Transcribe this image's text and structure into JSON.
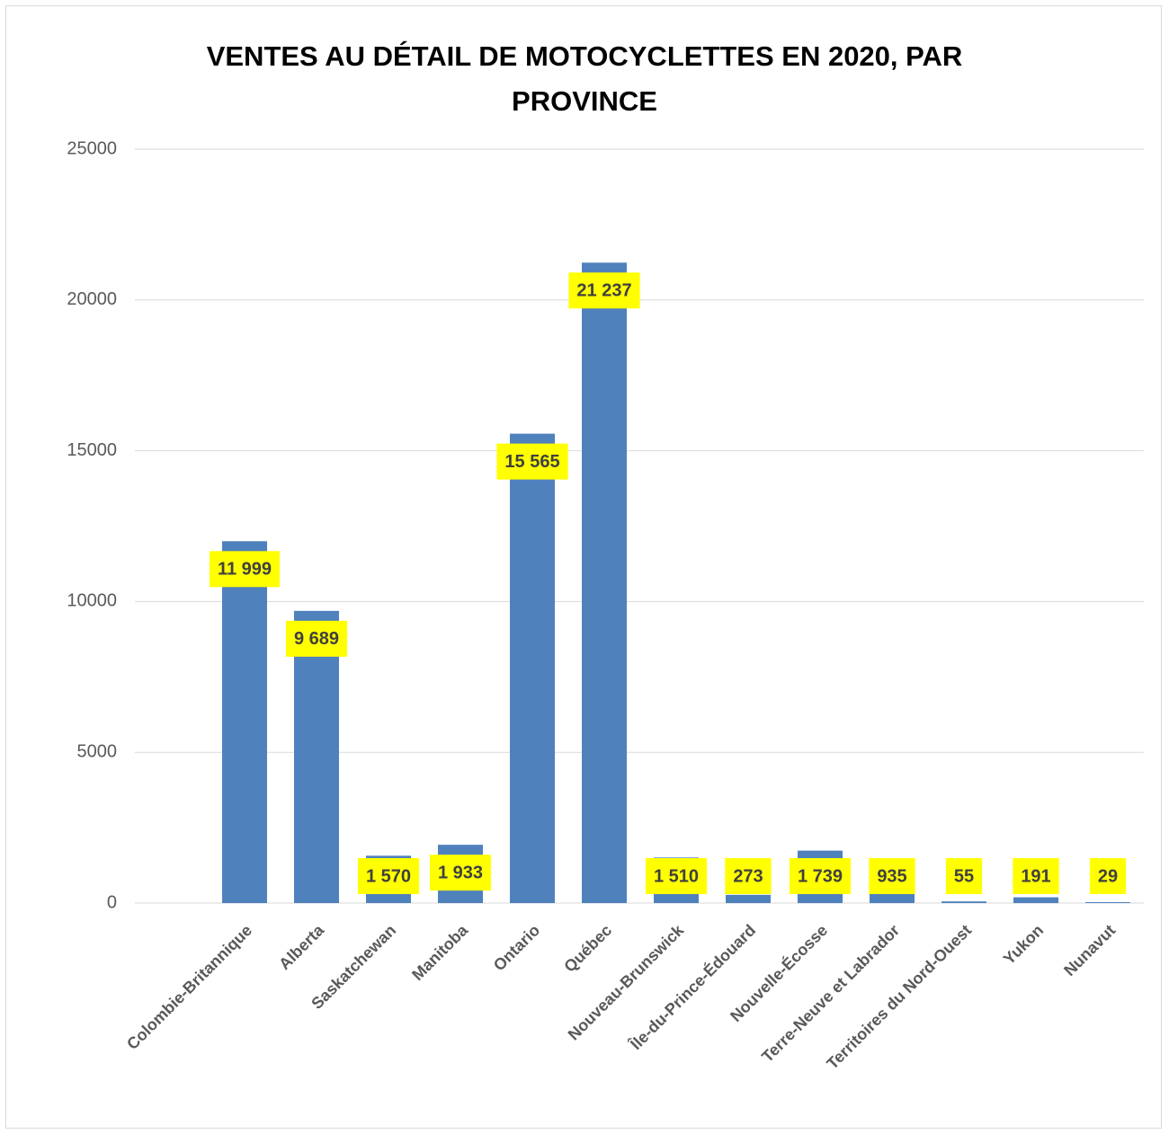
{
  "chart_data": {
    "type": "bar",
    "title": "VENTES AU DÉTAIL DE MOTOCYCLETTES EN 2020, PAR PROVINCE",
    "categories": [
      "Colombie-Britannique",
      "Alberta",
      "Saskatchewan",
      "Manitoba",
      "Ontario",
      "Québec",
      "Nouveau-Brunswick",
      "Île-du-Prince-Édouard",
      "Nouvelle-Écosse",
      "Terre-Neuve et Labrador",
      "Territoires du Nord-Ouest",
      "Yukon",
      "Nunavut"
    ],
    "values": [
      11999,
      9689,
      1570,
      1933,
      15565,
      21237,
      1510,
      273,
      1739,
      935,
      55,
      191,
      29
    ],
    "value_labels": [
      "11 999",
      "9 689",
      "1 570",
      "1 933",
      "15 565",
      "21 237",
      "1 510",
      "273",
      "1 739",
      "935",
      "55",
      "191",
      "29"
    ],
    "color": "#4f81bd",
    "label_background": "#ffff00",
    "ylim": [
      0,
      25000
    ],
    "yticks": [
      0,
      5000,
      10000,
      15000,
      20000,
      25000
    ],
    "grid": true
  }
}
